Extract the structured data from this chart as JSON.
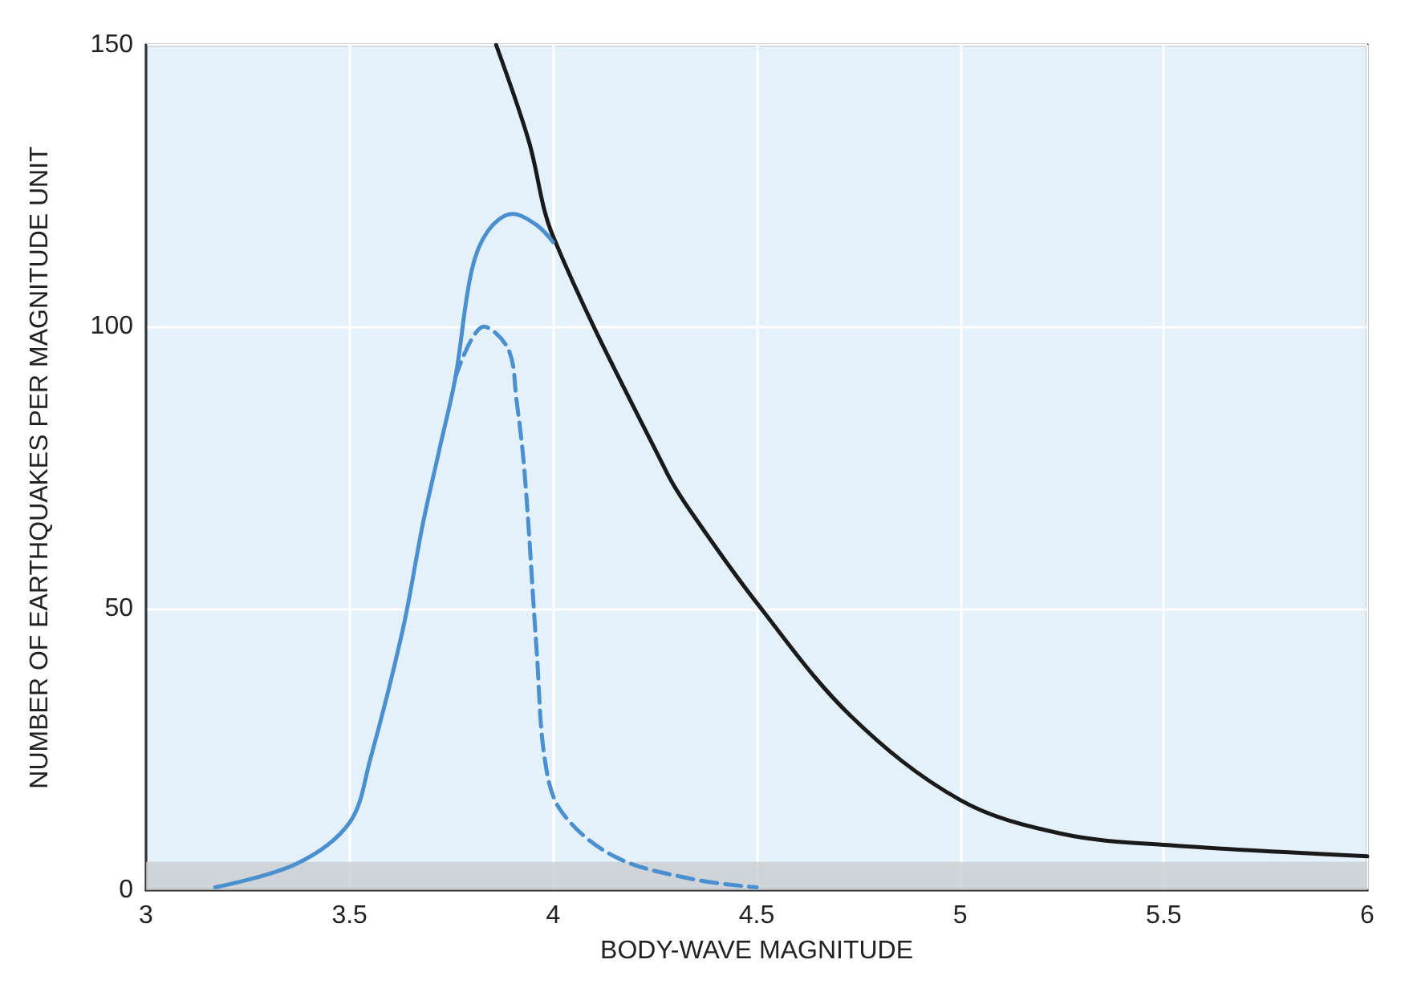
{
  "chart_data": {
    "type": "line",
    "xlabel": "BODY-WAVE MAGNITUDE",
    "ylabel": "NUMBER OF EARTHQUAKES PER MAGNITUDE UNIT",
    "xlim": [
      3,
      6
    ],
    "xticks": [
      3,
      3.5,
      4,
      4.5,
      5,
      5.5,
      6
    ],
    "ylim": [
      0,
      150
    ],
    "yticks": [
      0,
      50,
      100,
      150
    ],
    "grid": true,
    "marker": "none",
    "bands": [
      {
        "axis": "y",
        "from": 0,
        "to": 5,
        "color": "#c9cdd0"
      }
    ],
    "series": [
      {
        "color": "#1a1a1a",
        "line_style": "solid",
        "x": [
          3.86,
          3.94,
          4.0,
          4.28,
          4.34,
          4.5,
          4.73,
          5.0,
          5.25,
          5.51,
          6.0
        ],
        "values": [
          150,
          133,
          116,
          74,
          67,
          51,
          31,
          16,
          10,
          8,
          6
        ]
      },
      {
        "color": "#4a90d0",
        "line_style": "solid",
        "x": [
          3.17,
          3.37,
          3.5,
          3.55,
          3.63,
          3.68,
          3.72,
          3.76,
          3.8,
          3.84,
          3.9,
          3.96,
          4.0
        ],
        "values": [
          0.5,
          4.7,
          12,
          23,
          46,
          65,
          78,
          91,
          110,
          117,
          120,
          118,
          115
        ]
      },
      {
        "color": "#4a90d0",
        "line_style": "dashed",
        "x": [
          3.76,
          3.83,
          3.89,
          3.91,
          3.93,
          3.96,
          3.98,
          4.02,
          4.15,
          4.34,
          4.5
        ],
        "values": [
          91,
          100,
          96,
          87,
          74,
          42,
          23,
          14,
          6,
          2,
          0.5
        ]
      }
    ]
  }
}
